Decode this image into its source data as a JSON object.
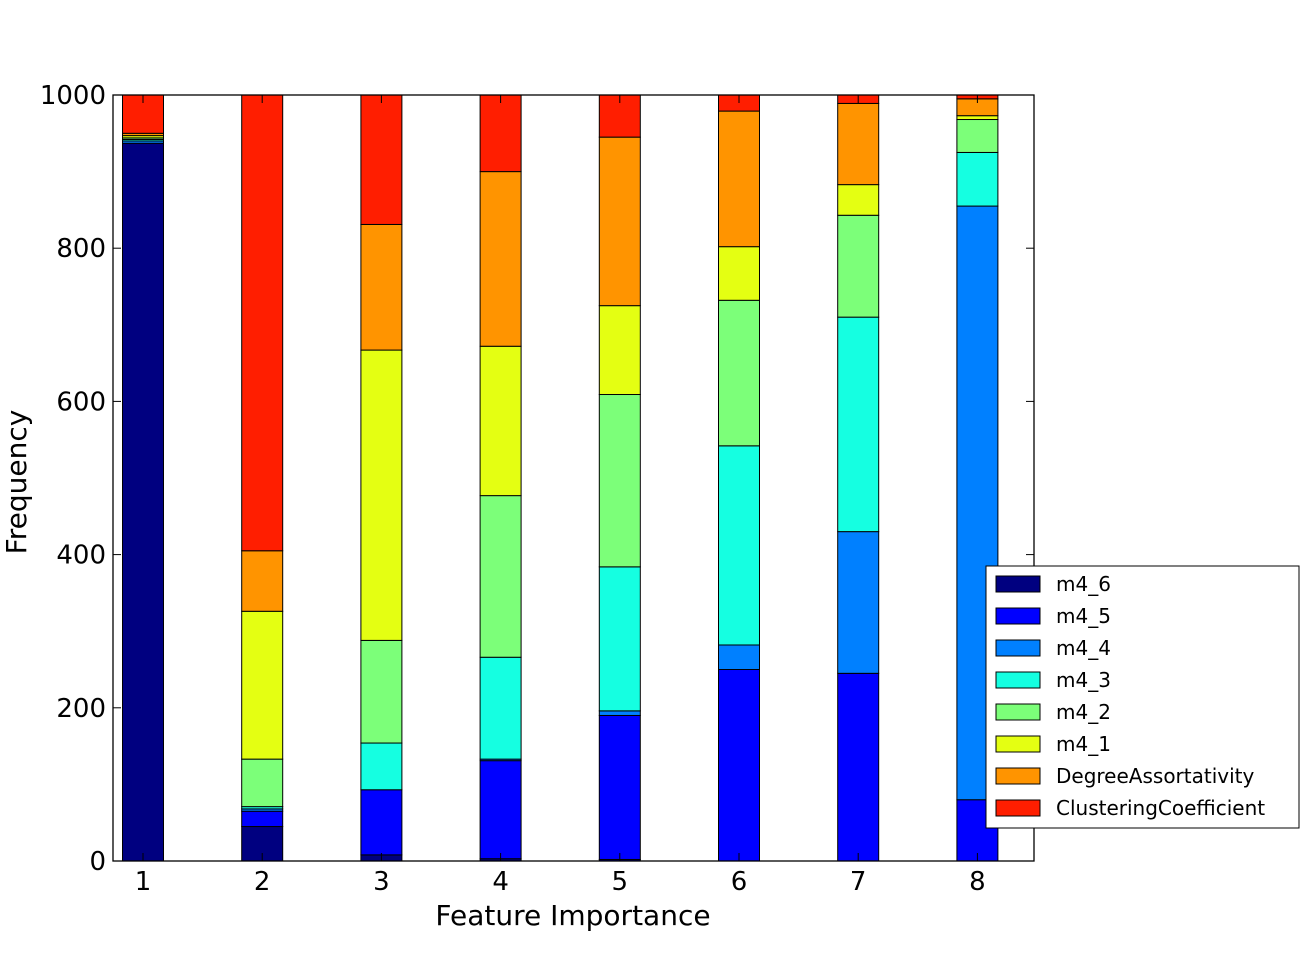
{
  "chart_data": {
    "type": "bar",
    "stacked": true,
    "categories": [
      "1",
      "2",
      "3",
      "4",
      "5",
      "6",
      "7",
      "8"
    ],
    "xlabel": "Feature Importance",
    "ylabel": "Frequency",
    "ylim": [
      0,
      1000
    ],
    "yticks": [
      "0",
      "200",
      "400",
      "600",
      "800",
      "1000"
    ],
    "grid": false,
    "legend_position": "lower-right",
    "series": [
      {
        "name": "m4_6",
        "color": "#000080",
        "values": [
          937,
          45,
          8,
          3,
          2,
          0,
          0,
          0
        ]
      },
      {
        "name": "m4_5",
        "color": "#0000ff",
        "values": [
          0,
          20,
          85,
          128,
          188,
          250,
          245,
          80
        ]
      },
      {
        "name": "m4_4",
        "color": "#0080ff",
        "values": [
          3,
          3,
          0,
          2,
          6,
          32,
          185,
          775
        ]
      },
      {
        "name": "m4_3",
        "color": "#15ffe1",
        "values": [
          2,
          3,
          61,
          133,
          188,
          260,
          280,
          70
        ]
      },
      {
        "name": "m4_2",
        "color": "#7cff79",
        "values": [
          2,
          62,
          134,
          211,
          225,
          190,
          133,
          43
        ]
      },
      {
        "name": "m4_1",
        "color": "#e4ff12",
        "values": [
          3,
          193,
          379,
          195,
          116,
          70,
          40,
          5
        ]
      },
      {
        "name": "DegreeAssortativity",
        "color": "#ff9400",
        "values": [
          3,
          79,
          164,
          228,
          220,
          177,
          106,
          22
        ]
      },
      {
        "name": "ClusteringCoefficient",
        "color": "#ff1e00",
        "values": [
          50,
          595,
          169,
          100,
          55,
          21,
          11,
          5
        ]
      }
    ]
  }
}
